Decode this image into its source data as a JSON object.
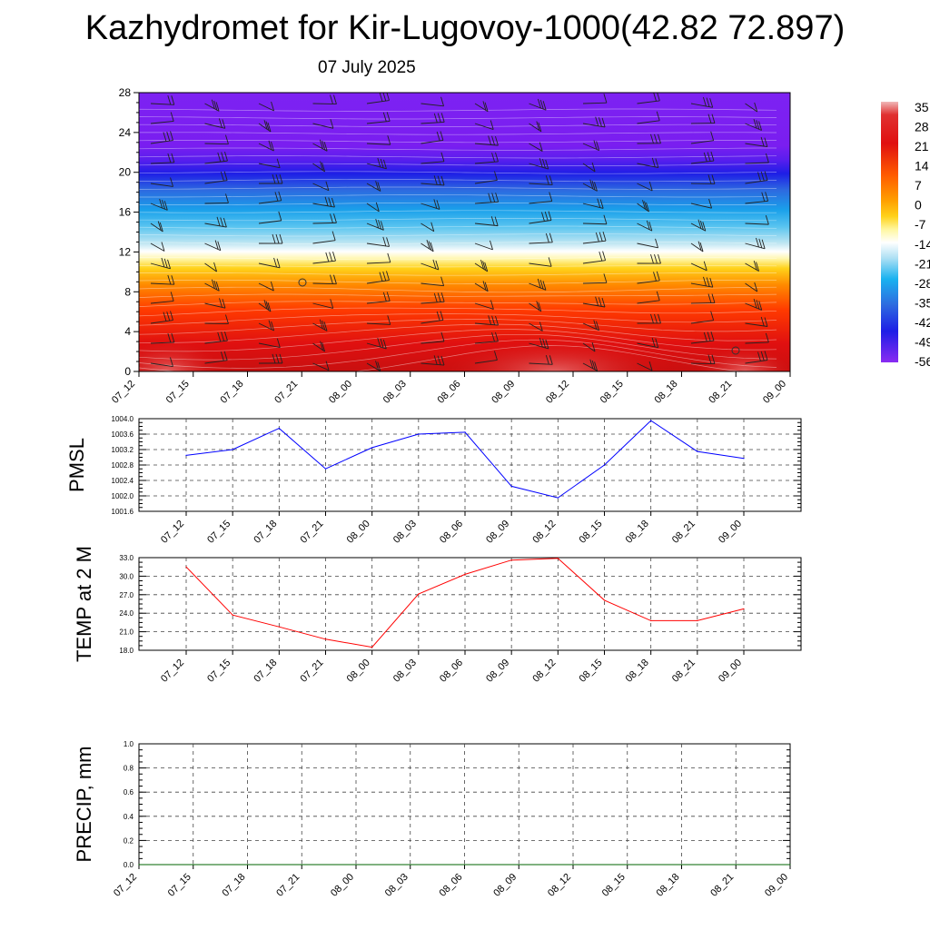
{
  "title": "Kazhydromet for Kir-Lugovoy-1000(42.82 72.897)",
  "subtitle": "07 July 2025",
  "time_ticks": [
    "07_12",
    "07_15",
    "07_18",
    "07_21",
    "08_00",
    "08_03",
    "08_06",
    "08_09",
    "08_12",
    "08_15",
    "08_18",
    "08_21",
    "09_00"
  ],
  "chart_data": [
    {
      "type": "heatmap",
      "description_text": "",
      "y_ticks": [
        0,
        4,
        8,
        12,
        16,
        20,
        24,
        28
      ],
      "ylim": [
        0,
        28
      ],
      "colorbar_labels": [
        "35",
        "28",
        "21",
        "14",
        "7",
        "0",
        "-7",
        "-14",
        "-21",
        "-28",
        "-35",
        "-42",
        "-49",
        "-56"
      ],
      "colorbar_range": [
        -56,
        35
      ],
      "colors": {
        "hot": "#d80000",
        "warm": "#ff7a00",
        "mild": "#ffd21a",
        "pale": "#fffff0",
        "cool": "#1ab2f0",
        "cold": "#1e1ee6",
        "coldest": "#7a1ef0"
      }
    },
    {
      "type": "line",
      "ylabel": "PMSL",
      "color": "#0000ff",
      "ylim": [
        1001.6,
        1004.0
      ],
      "y_ticks": [
        "1001.6",
        "1002.0",
        "1002.4",
        "1002.8",
        "1003.2",
        "1003.6",
        "1004.0"
      ],
      "x": [
        "07_12",
        "07_15",
        "07_18",
        "07_21",
        "08_00",
        "08_03",
        "08_06",
        "08_09",
        "08_12",
        "08_15",
        "08_18",
        "08_21",
        "09_00"
      ],
      "values": [
        1003.05,
        1003.2,
        1003.75,
        1002.7,
        1003.25,
        1003.6,
        1003.65,
        1002.25,
        1001.95,
        1002.8,
        1003.95,
        1003.15,
        1002.97
      ]
    },
    {
      "type": "line",
      "ylabel": "TEMP at 2 M",
      "color": "#ff0000",
      "ylim": [
        18.0,
        33.0
      ],
      "y_ticks": [
        "18.0",
        "21.0",
        "24.0",
        "27.0",
        "30.0",
        "33.0"
      ],
      "x": [
        "07_12",
        "07_15",
        "07_18",
        "07_21",
        "08_00",
        "08_03",
        "08_06",
        "08_09",
        "08_12",
        "08_15",
        "08_18",
        "08_21",
        "09_00"
      ],
      "values": [
        31.5,
        23.7,
        21.8,
        19.8,
        18.5,
        27.1,
        30.3,
        32.6,
        32.9,
        26.1,
        22.8,
        22.8,
        24.7
      ]
    },
    {
      "type": "line",
      "ylabel": "PRECIP, mm",
      "color": "#006400",
      "ylim": [
        0.0,
        1.0
      ],
      "y_ticks": [
        "0.0",
        "0.2",
        "0.4",
        "0.6",
        "0.8",
        "1.0"
      ],
      "x": [
        "07_12",
        "07_15",
        "07_18",
        "07_21",
        "08_00",
        "08_03",
        "08_06",
        "08_09",
        "08_12",
        "08_15",
        "08_18",
        "08_21",
        "09_00"
      ],
      "values": [
        0,
        0,
        0,
        0,
        0,
        0,
        0,
        0,
        0,
        0,
        0,
        0,
        0
      ]
    }
  ]
}
